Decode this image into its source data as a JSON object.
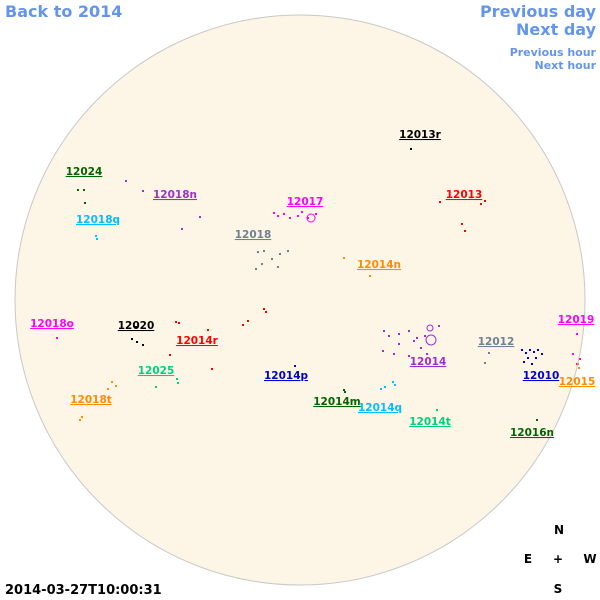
{
  "nav": {
    "back": "Back to 2014",
    "previous_day": "Previous day",
    "next_day": "Next day",
    "previous_hour": "Previous hour",
    "next_hour": "Next hour"
  },
  "regions": [
    {
      "label": "12013r",
      "color": "#000000"
    },
    {
      "label": "12024",
      "color": "#006400"
    },
    {
      "label": "12018n",
      "color": "#9932cc"
    },
    {
      "label": "12017",
      "color": "#ff00ff"
    },
    {
      "label": "12013",
      "color": "#ff0000"
    },
    {
      "label": "12018q",
      "color": "#00bfff"
    },
    {
      "label": "12018",
      "color": "#708090"
    },
    {
      "label": "12014n",
      "color": "#ff8c00"
    },
    {
      "label": "12018o",
      "color": "#ff00ff"
    },
    {
      "label": "12020",
      "color": "#000000"
    },
    {
      "label": "12014r",
      "color": "#ff0000"
    },
    {
      "label": "12019",
      "color": "#ff00ff"
    },
    {
      "label": "12012",
      "color": "#708090"
    },
    {
      "label": "12014",
      "color": "#9932cc"
    },
    {
      "label": "12025",
      "color": "#00d080"
    },
    {
      "label": "12010",
      "color": "#0000cd"
    },
    {
      "label": "12014p",
      "color": "#0000cd"
    },
    {
      "label": "12015",
      "color": "#ff8c00"
    },
    {
      "label": "12018t",
      "color": "#ff8c00"
    },
    {
      "label": "12014m",
      "color": "#006400"
    },
    {
      "label": "12014q",
      "color": "#00bfff"
    },
    {
      "label": "12014t",
      "color": "#00d080"
    },
    {
      "label": "12016n",
      "color": "#006400"
    }
  ],
  "timestamp": "2014-03-27T10:00:31",
  "compass": {
    "north": "N",
    "east": "E",
    "center": "+",
    "west": "W",
    "south": "S"
  }
}
